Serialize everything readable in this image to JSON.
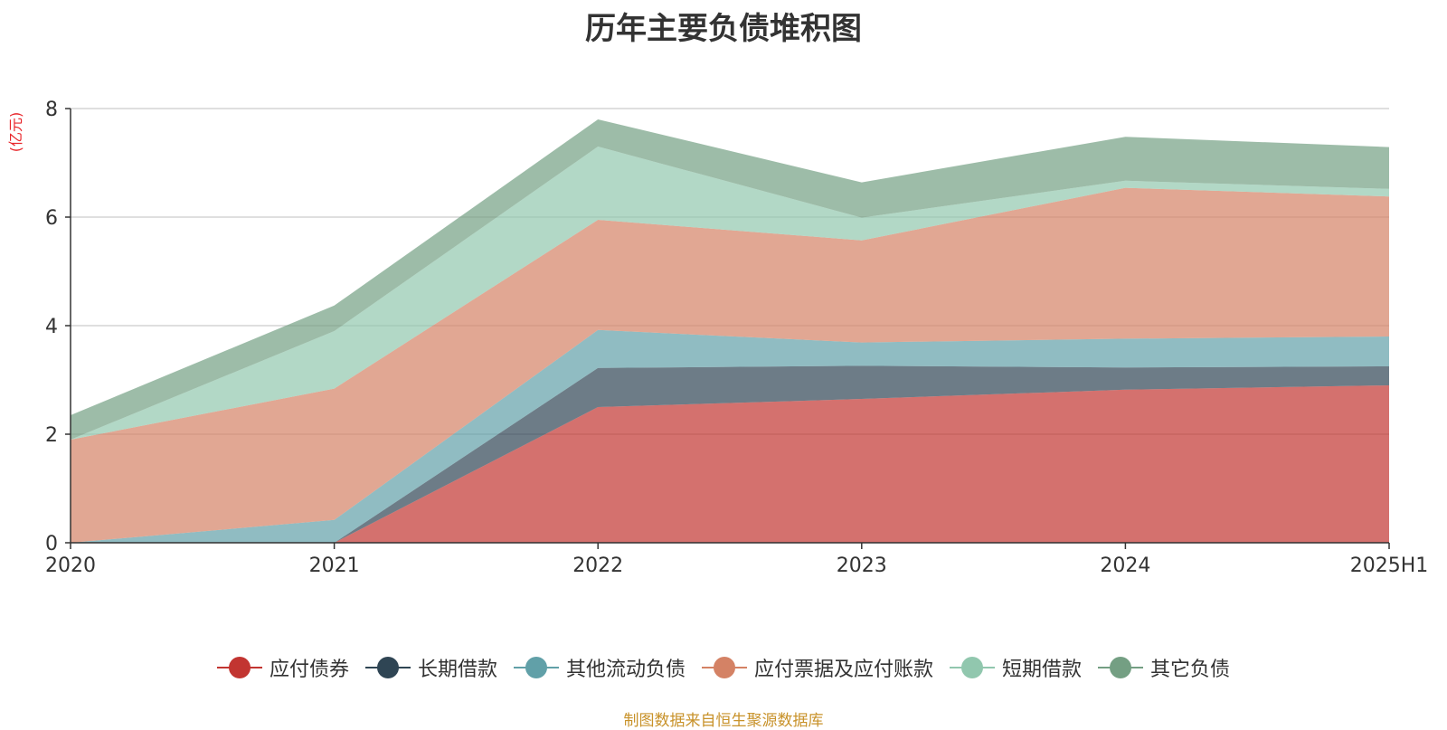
{
  "chart_data": {
    "type": "area",
    "stacked": true,
    "title": "历年主要负债堆积图",
    "unit_label": "(亿元)",
    "categories": [
      "2020",
      "2021",
      "2022",
      "2023",
      "2024",
      "2025H1"
    ],
    "ylim": [
      0,
      8
    ],
    "yticks": [
      "0",
      "2",
      "4",
      "6",
      "8"
    ],
    "grid": true,
    "legend_position": "bottom",
    "series": [
      {
        "name": "应付债券",
        "color": "#c23531",
        "values": [
          0,
          0,
          2.5,
          2.65,
          2.82,
          2.9
        ]
      },
      {
        "name": "长期借款",
        "color": "#2f4554",
        "values": [
          0,
          0,
          0.72,
          0.61,
          0.41,
          0.35
        ]
      },
      {
        "name": "其他流动负债",
        "color": "#61a0a8",
        "values": [
          0,
          0.42,
          0.7,
          0.43,
          0.53,
          0.55
        ]
      },
      {
        "name": "应付票据及应付账款",
        "color": "#d48265",
        "values": [
          1.9,
          2.42,
          2.03,
          1.88,
          2.78,
          2.58
        ]
      },
      {
        "name": "短期借款",
        "color": "#91c7ae",
        "values": [
          0,
          1.06,
          1.35,
          0.42,
          0.13,
          0.14
        ]
      },
      {
        "name": "其它负债",
        "color": "#749f83",
        "values": [
          0.45,
          0.47,
          0.5,
          0.65,
          0.81,
          0.77
        ]
      }
    ]
  },
  "footer": {
    "source": "制图数据来自恒生聚源数据库"
  }
}
